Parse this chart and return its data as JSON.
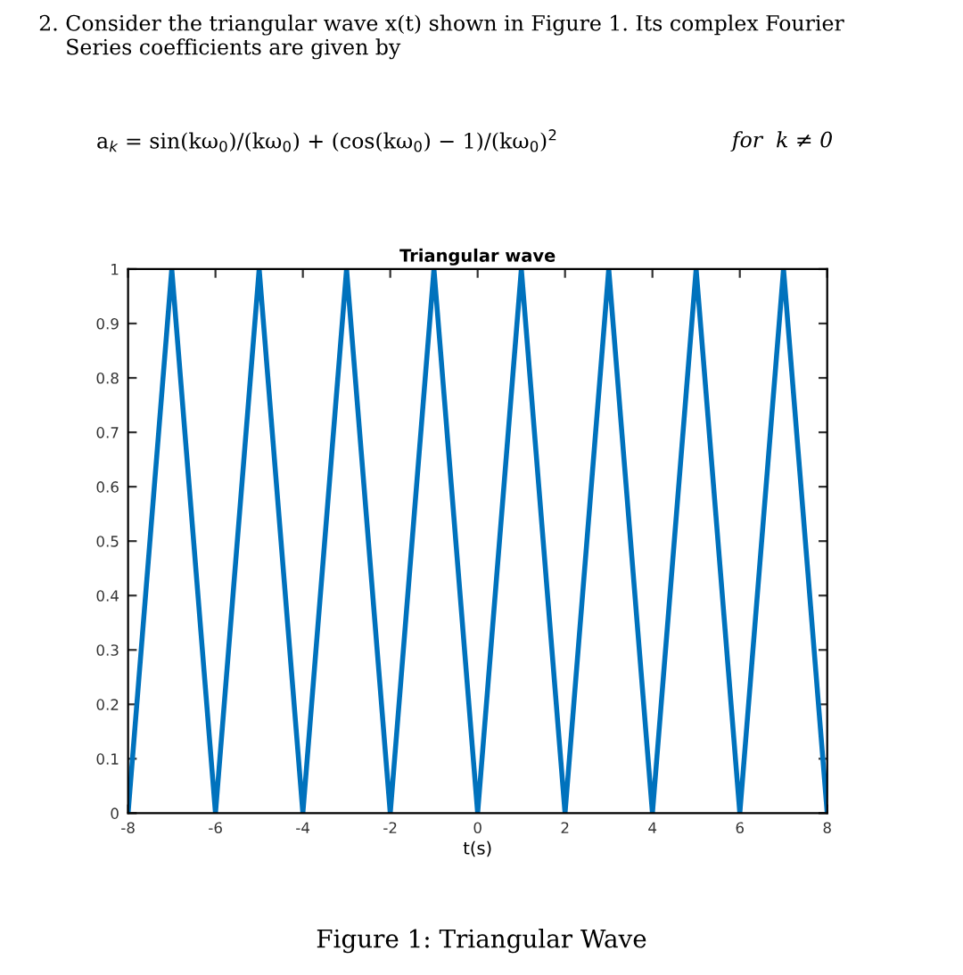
{
  "chart_data": {
    "type": "line",
    "title": "Triangular wave",
    "xlabel": "t(s)",
    "x": [
      -8,
      -7,
      -6,
      -5,
      -4,
      -3,
      -2,
      -1,
      0,
      1,
      2,
      3,
      4,
      5,
      6,
      7,
      8
    ],
    "series": [
      {
        "color": "#0072bd",
        "values": [
          0,
          1,
          0,
          1,
          0,
          1,
          0,
          1,
          0,
          1,
          0,
          1,
          0,
          1,
          0,
          1,
          0
        ]
      }
    ],
    "xlim": [
      -8,
      8
    ],
    "xticks": [
      -8,
      -6,
      -4,
      -2,
      0,
      2,
      4,
      6,
      8
    ],
    "ylim": [
      0,
      1
    ],
    "yticks": [
      0,
      0.1,
      0.2,
      0.3,
      0.4,
      0.5,
      0.6,
      0.7,
      0.8,
      0.9,
      1
    ],
    "grid": false,
    "legend": false,
    "marker": "none",
    "line_style": "solid",
    "annotations": [
      "2. Consider the triangular wave x(t) shown in Figure 1. Its complex Fourier\n    Series coefficients are given by",
      "a$_{k}$ = sin(kω$_{0}$)/(kω$_{0}$) + (cos(kω$_{0}$) − 1)/(kω$_{0}$)$^{2}$",
      "for  k ≠ 0",
      "Figure 1: Triangular Wave"
    ]
  }
}
